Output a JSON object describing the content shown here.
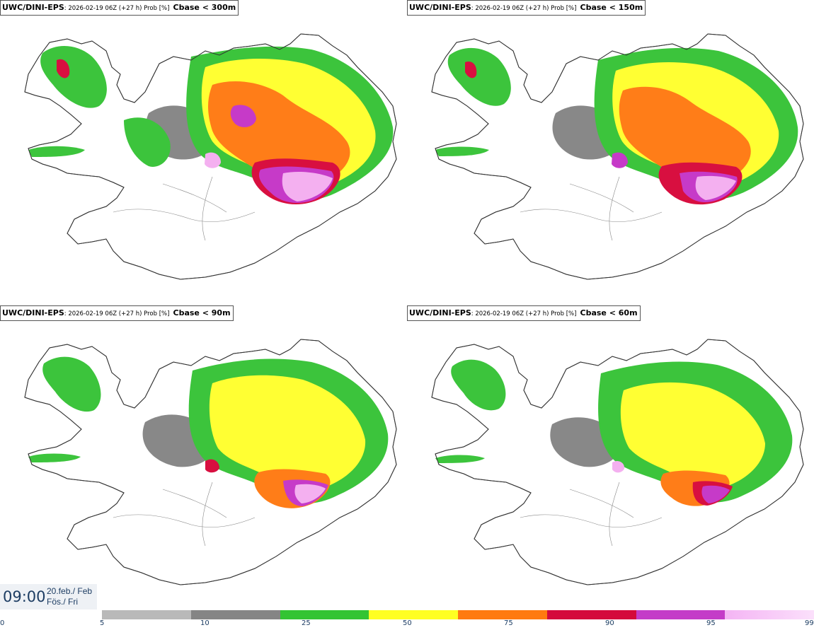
{
  "panels": [
    {
      "model": "UWC/DINI-EPS",
      "info": ": 2026-02-19 06Z (+27 h) Prob [%]",
      "param": "Cbase < 300m"
    },
    {
      "model": "UWC/DINI-EPS",
      "info": ": 2026-02-19 06Z (+27 h) Prob [%]",
      "param": "Cbase < 150m"
    },
    {
      "model": "UWC/DINI-EPS",
      "info": ": 2026-02-19 06Z (+27 h) Prob [%]",
      "param": "Cbase < 90m"
    },
    {
      "model": "UWC/DINI-EPS",
      "info": ": 2026-02-19 06Z (+27 h) Prob [%]",
      "param": "Cbase < 60m"
    }
  ],
  "time": {
    "clock": "09:00",
    "date_line": "20.feb./ Feb",
    "day_line": "Fös./ Fri"
  },
  "legend": {
    "ticks": [
      "0",
      "5",
      "10",
      "25",
      "50",
      "75",
      "90",
      "95",
      "99"
    ],
    "colors": [
      "#b9b9b9",
      "#858585",
      "#33c433",
      "#ffff22",
      "#ff7a10",
      "#d40a3c",
      "#c43cc8",
      "#f4b4f4"
    ]
  },
  "map_colors": {
    "low": "#b0b0b0",
    "mid": "#888888",
    "green": "#3cc43c",
    "yellow": "#ffff33",
    "orange": "#ff7d18",
    "red": "#d80f40",
    "magenta": "#c63ac8",
    "pink": "#f4b0f0"
  }
}
